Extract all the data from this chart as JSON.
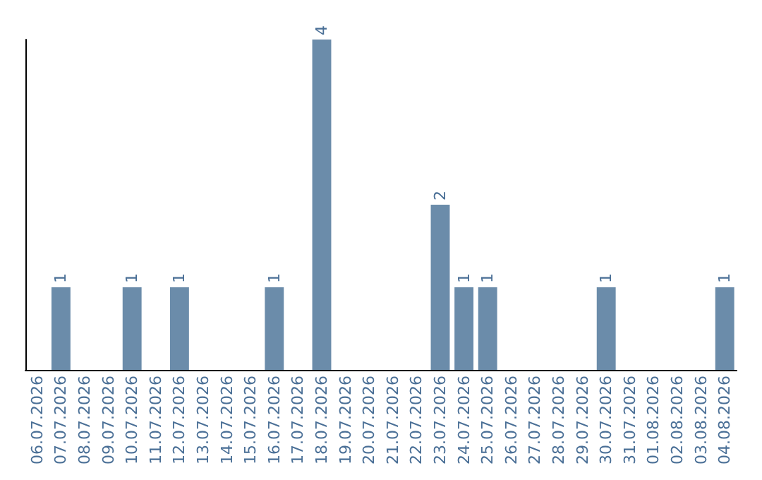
{
  "chart_data": {
    "type": "bar",
    "categories": [
      "06.07.2026",
      "07.07.2026",
      "08.07.2026",
      "09.07.2026",
      "10.07.2026",
      "11.07.2026",
      "12.07.2026",
      "13.07.2026",
      "14.07.2026",
      "15.07.2026",
      "16.07.2026",
      "17.07.2026",
      "18.07.2026",
      "19.07.2026",
      "20.07.2026",
      "21.07.2026",
      "22.07.2026",
      "23.07.2026",
      "24.07.2026",
      "25.07.2026",
      "26.07.2026",
      "27.07.2026",
      "28.07.2026",
      "29.07.2026",
      "30.07.2026",
      "31.07.2026",
      "01.08.2026",
      "02.08.2026",
      "03.08.2026",
      "04.08.2026"
    ],
    "values": [
      0,
      1,
      0,
      0,
      1,
      0,
      1,
      0,
      0,
      0,
      1,
      0,
      4,
      0,
      0,
      0,
      0,
      2,
      1,
      1,
      0,
      0,
      0,
      0,
      1,
      0,
      0,
      0,
      0,
      1
    ],
    "value_labels": [
      null,
      "1",
      null,
      null,
      "1",
      null,
      "1",
      null,
      null,
      null,
      "1",
      null,
      "4",
      null,
      null,
      null,
      null,
      "2",
      "1",
      "1",
      null,
      null,
      null,
      null,
      "1",
      null,
      null,
      null,
      null,
      "1"
    ],
    "color": "#6b8caa",
    "ylim": [
      0,
      4
    ],
    "tick_labels": "x"
  }
}
